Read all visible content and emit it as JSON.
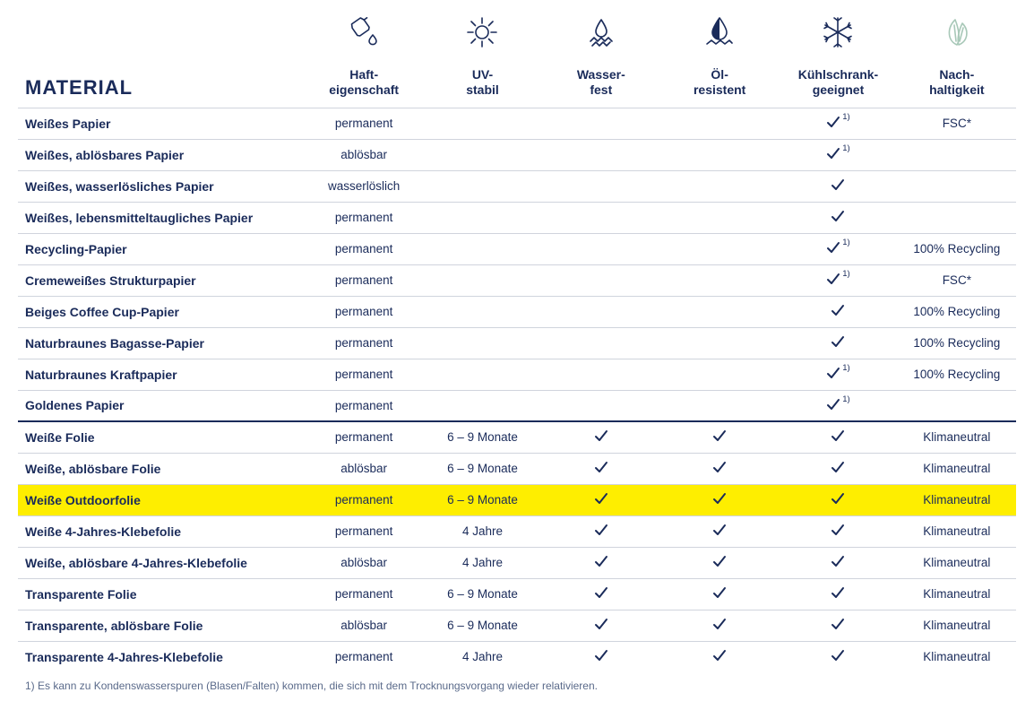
{
  "title": "MATERIAL",
  "columns": [
    {
      "id": "haft",
      "label1": "Haft-",
      "label2": "eigenschaft",
      "icon": "drop-bottle"
    },
    {
      "id": "uv",
      "label1": "UV-",
      "label2": "stabil",
      "icon": "sun"
    },
    {
      "id": "wasser",
      "label1": "Wasser-",
      "label2": "fest",
      "icon": "water-drop"
    },
    {
      "id": "oel",
      "label1": "Öl-",
      "label2": "resistent",
      "icon": "oil-drop"
    },
    {
      "id": "kuehl",
      "label1": "Kühlschrank-",
      "label2": "geeignet",
      "icon": "snowflake"
    },
    {
      "id": "nach",
      "label1": "Nach-",
      "label2": "haltigkeit",
      "icon": "leaves"
    }
  ],
  "rows": [
    {
      "material": "Weißes Papier",
      "haft": "permanent",
      "kuehl_check": true,
      "kuehl_sup": "1)",
      "nach": "FSC*"
    },
    {
      "material": "Weißes, ablösbares Papier",
      "haft": "ablösbar",
      "kuehl_check": true,
      "kuehl_sup": "1)"
    },
    {
      "material": "Weißes, wasserlösliches Papier",
      "haft": "wasserlöslich",
      "kuehl_check": true
    },
    {
      "material": "Weißes, lebensmitteltaugliches Papier",
      "haft": "permanent",
      "kuehl_check": true
    },
    {
      "material": "Recycling-Papier",
      "haft": "permanent",
      "kuehl_check": true,
      "kuehl_sup": "1)",
      "nach": "100% Recycling"
    },
    {
      "material": "Cremeweißes Strukturpapier",
      "haft": "permanent",
      "kuehl_check": true,
      "kuehl_sup": "1)",
      "nach": "FSC*"
    },
    {
      "material": "Beiges Coffee Cup-Papier",
      "haft": "permanent",
      "kuehl_check": true,
      "nach": "100% Recycling"
    },
    {
      "material": "Naturbraunes Bagasse-Papier",
      "haft": "permanent",
      "kuehl_check": true,
      "nach": "100% Recycling"
    },
    {
      "material": "Naturbraunes Kraftpapier",
      "haft": "permanent",
      "kuehl_check": true,
      "kuehl_sup": "1)",
      "nach": "100% Recycling"
    },
    {
      "material": "Goldenes Papier",
      "haft": "permanent",
      "kuehl_check": true,
      "kuehl_sup": "1)"
    },
    {
      "material": "Weiße Folie",
      "section_start": true,
      "haft": "permanent",
      "uv": "6 – 9 Monate",
      "wasser_check": true,
      "oel_check": true,
      "kuehl_check": true,
      "nach": "Klimaneutral"
    },
    {
      "material": "Weiße, ablösbare Folie",
      "haft": "ablösbar",
      "uv": "6 – 9 Monate",
      "wasser_check": true,
      "oel_check": true,
      "kuehl_check": true,
      "nach": "Klimaneutral"
    },
    {
      "material": "Weiße Outdoorfolie",
      "highlight": true,
      "haft": "permanent",
      "uv": "6 – 9 Monate",
      "wasser_check": true,
      "oel_check": true,
      "kuehl_check": true,
      "nach": "Klimaneutral"
    },
    {
      "material": "Weiße 4-Jahres-Klebefolie",
      "haft": "permanent",
      "uv": "4 Jahre",
      "wasser_check": true,
      "oel_check": true,
      "kuehl_check": true,
      "nach": "Klimaneutral"
    },
    {
      "material": "Weiße, ablösbare 4-Jahres-Klebefolie",
      "haft": "ablösbar",
      "uv": "4 Jahre",
      "wasser_check": true,
      "oel_check": true,
      "kuehl_check": true,
      "nach": "Klimaneutral"
    },
    {
      "material": "Transparente Folie",
      "haft": "permanent",
      "uv": "6 – 9 Monate",
      "wasser_check": true,
      "oel_check": true,
      "kuehl_check": true,
      "nach": "Klimaneutral"
    },
    {
      "material": "Transparente, ablösbare Folie",
      "haft": "ablösbar",
      "uv": "6 – 9 Monate",
      "wasser_check": true,
      "oel_check": true,
      "kuehl_check": true,
      "nach": "Klimaneutral"
    },
    {
      "material": "Transparente 4-Jahres-Klebefolie",
      "haft": "permanent",
      "uv": "4 Jahre",
      "wasser_check": true,
      "oel_check": true,
      "kuehl_check": true,
      "nach": "Klimaneutral"
    }
  ],
  "footnote": "1) Es kann zu Kondenswasserspuren (Blasen/Falten) kommen, die sich mit dem Trocknungsvorgang wieder relativieren.",
  "colors": {
    "ink": "#1a2b5a",
    "line": "#d0d4dd",
    "highlight": "#feee00",
    "leaf": "#a8c8b8"
  }
}
